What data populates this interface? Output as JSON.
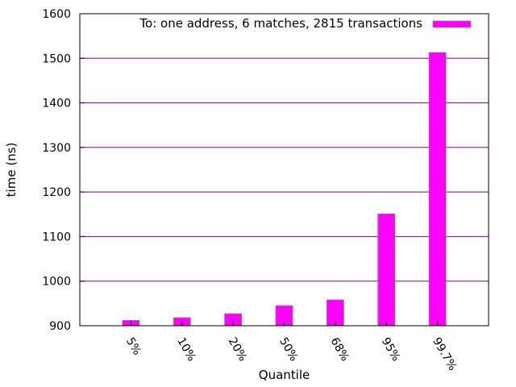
{
  "chart_data": {
    "type": "bar",
    "title": "",
    "xlabel": "Quantile",
    "ylabel": "time (ns)",
    "categories": [
      "5%",
      "10%",
      "20%",
      "50%",
      "68%",
      "95%",
      "99.7%"
    ],
    "series": [
      {
        "name": "To: one address, 6 matches, 2815 transactions",
        "values": [
          912,
          918,
          927,
          945,
          958,
          1151,
          1513
        ],
        "color": "#ff00ff"
      }
    ],
    "ylim": [
      900,
      1600
    ],
    "yticks": [
      900,
      1000,
      1100,
      1200,
      1300,
      1400,
      1500,
      1600
    ],
    "grid": true,
    "grid_color": "#800080",
    "legend_position": "top-right"
  }
}
